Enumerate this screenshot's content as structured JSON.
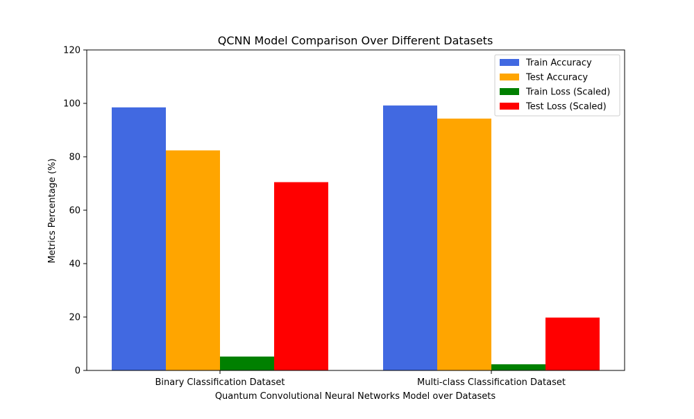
{
  "chart_data": {
    "type": "bar",
    "title": "QCNN Model Comparison Over Different Datasets",
    "xlabel": "Quantum Convolutional Neural Networks Model over Datasets",
    "ylabel": "Metrics Percentage (%)",
    "categories": [
      "Binary Classification Dataset",
      "Multi-class Classification Dataset"
    ],
    "series": [
      {
        "name": "Train Accuracy",
        "color": "#4169E1",
        "values": [
          98.5,
          99.2
        ]
      },
      {
        "name": "Test Accuracy",
        "color": "#FFA500",
        "values": [
          82.4,
          94.3
        ]
      },
      {
        "name": "Train Loss (Scaled)",
        "color": "#008000",
        "values": [
          5.2,
          2.3
        ]
      },
      {
        "name": "Test Loss (Scaled)",
        "color": "#FF0000",
        "values": [
          70.5,
          19.8
        ]
      }
    ],
    "ylim": [
      0,
      120
    ],
    "yticks": [
      "0",
      "20",
      "40",
      "60",
      "80",
      "100",
      "120"
    ],
    "grid": false,
    "legend_position": "top-right"
  }
}
